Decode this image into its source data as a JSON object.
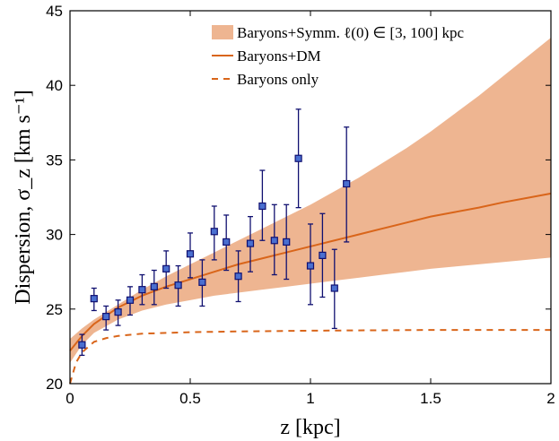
{
  "chart_data": {
    "type": "line",
    "xlabel": "z [kpc]",
    "ylabel": "Dispersion, σ_z [km s⁻¹]",
    "xlim": [
      0,
      2
    ],
    "ylim": [
      20,
      45
    ],
    "xticks": [
      0,
      0.5,
      1,
      1.5,
      2
    ],
    "xtick_labels": [
      "0",
      "0.5",
      "1",
      "1.5",
      "2"
    ],
    "yticks": [
      20,
      25,
      30,
      35,
      40,
      45
    ],
    "ytick_labels": [
      "20",
      "25",
      "30",
      "35",
      "40",
      "45"
    ],
    "grid": false,
    "legend_position": "top-right",
    "legend": [
      {
        "label": "Baryons+Symm. ℓ(0) ∈ [3, 100] kpc",
        "kind": "band"
      },
      {
        "label": "Baryons+DM",
        "kind": "solid"
      },
      {
        "label": "Baryons only",
        "kind": "dashed"
      }
    ],
    "colors": {
      "band": "#eeb591",
      "line": "#d9651a",
      "marker_fill": "#4a6fd0",
      "marker_edge": "#101070",
      "errorbar": "#101070"
    },
    "series": [
      {
        "name": "Baryons+Symm. ℓ(0) ∈ [3, 100] kpc",
        "type": "band",
        "x": [
          0,
          0.05,
          0.1,
          0.2,
          0.3,
          0.4,
          0.5,
          0.6,
          0.7,
          0.8,
          0.9,
          1.0,
          1.1,
          1.2,
          1.3,
          1.4,
          1.5,
          1.6,
          1.7,
          1.8,
          1.9,
          2.0
        ],
        "lower": [
          21.4,
          22.6,
          23.4,
          24.3,
          24.9,
          25.3,
          25.6,
          25.9,
          26.1,
          26.3,
          26.5,
          26.7,
          26.9,
          27.1,
          27.3,
          27.5,
          27.7,
          27.85,
          28.0,
          28.15,
          28.3,
          28.45
        ],
        "upper": [
          23.0,
          23.7,
          24.3,
          25.3,
          26.3,
          27.2,
          28.0,
          28.8,
          29.6,
          30.4,
          31.2,
          32.0,
          32.9,
          33.8,
          34.8,
          35.8,
          36.9,
          38.1,
          39.3,
          40.6,
          41.9,
          43.2
        ]
      },
      {
        "name": "Baryons+DM",
        "type": "line",
        "x": [
          0,
          0.05,
          0.1,
          0.2,
          0.3,
          0.4,
          0.5,
          0.6,
          0.7,
          0.8,
          0.9,
          1.0,
          1.1,
          1.2,
          1.3,
          1.4,
          1.5,
          1.6,
          1.7,
          1.8,
          1.9,
          2.0
        ],
        "y": [
          22.2,
          23.2,
          24.0,
          25.1,
          25.9,
          26.5,
          27.0,
          27.5,
          28.0,
          28.4,
          28.8,
          29.2,
          29.6,
          30.0,
          30.4,
          30.8,
          31.2,
          31.5,
          31.8,
          32.15,
          32.45,
          32.75
        ]
      },
      {
        "name": "Baryons only",
        "type": "dashed",
        "x": [
          0,
          0.025,
          0.05,
          0.1,
          0.15,
          0.2,
          0.3,
          0.4,
          0.5,
          0.7,
          1.0,
          1.5,
          2.0
        ],
        "y": [
          20.0,
          21.4,
          22.1,
          22.8,
          23.05,
          23.2,
          23.35,
          23.4,
          23.45,
          23.5,
          23.55,
          23.6,
          23.6
        ]
      },
      {
        "name": "data",
        "type": "errorbar",
        "points": [
          {
            "x": 0.05,
            "y": 22.6,
            "lo": 21.9,
            "hi": 23.3
          },
          {
            "x": 0.1,
            "y": 25.7,
            "lo": 24.9,
            "hi": 26.4
          },
          {
            "x": 0.15,
            "y": 24.5,
            "lo": 23.6,
            "hi": 25.2
          },
          {
            "x": 0.2,
            "y": 24.8,
            "lo": 23.9,
            "hi": 25.6
          },
          {
            "x": 0.25,
            "y": 25.6,
            "lo": 24.6,
            "hi": 26.5
          },
          {
            "x": 0.3,
            "y": 26.3,
            "lo": 25.3,
            "hi": 27.3
          },
          {
            "x": 0.35,
            "y": 26.5,
            "lo": 25.3,
            "hi": 27.6
          },
          {
            "x": 0.4,
            "y": 27.7,
            "lo": 26.4,
            "hi": 28.9
          },
          {
            "x": 0.45,
            "y": 26.6,
            "lo": 25.2,
            "hi": 27.9
          },
          {
            "x": 0.5,
            "y": 28.7,
            "lo": 27.1,
            "hi": 30.1
          },
          {
            "x": 0.55,
            "y": 26.8,
            "lo": 25.2,
            "hi": 28.3
          },
          {
            "x": 0.6,
            "y": 30.2,
            "lo": 28.3,
            "hi": 31.9
          },
          {
            "x": 0.65,
            "y": 29.5,
            "lo": 27.6,
            "hi": 31.3
          },
          {
            "x": 0.7,
            "y": 27.2,
            "lo": 25.5,
            "hi": 28.9
          },
          {
            "x": 0.75,
            "y": 29.4,
            "lo": 27.5,
            "hi": 31.2
          },
          {
            "x": 0.8,
            "y": 31.9,
            "lo": 29.6,
            "hi": 34.3
          },
          {
            "x": 0.85,
            "y": 29.6,
            "lo": 27.3,
            "hi": 32.0
          },
          {
            "x": 0.9,
            "y": 29.5,
            "lo": 27.0,
            "hi": 32.0
          },
          {
            "x": 0.95,
            "y": 35.1,
            "lo": 31.8,
            "hi": 38.4
          },
          {
            "x": 1.0,
            "y": 27.9,
            "lo": 25.3,
            "hi": 30.7
          },
          {
            "x": 1.05,
            "y": 28.6,
            "lo": 25.8,
            "hi": 31.4
          },
          {
            "x": 1.1,
            "y": 26.4,
            "lo": 23.7,
            "hi": 29.0
          },
          {
            "x": 1.15,
            "y": 33.4,
            "lo": 29.5,
            "hi": 37.2
          }
        ]
      }
    ]
  }
}
